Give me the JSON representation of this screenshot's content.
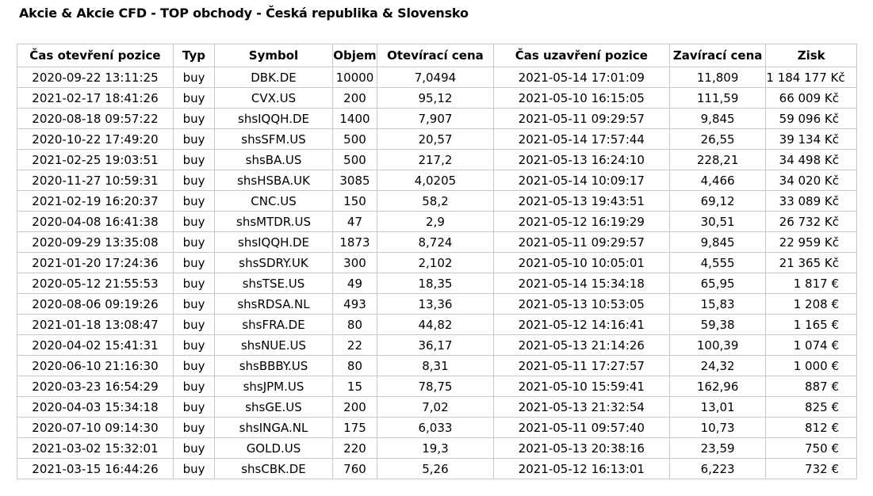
{
  "title": "Akcie & Akcie CFD - TOP obchody - Česká republika & Slovensko",
  "table": {
    "headers": [
      "Čas otevření pozice",
      "Typ",
      "Symbol",
      "Objem",
      "Otevírací cena",
      "Čas uzavření pozice",
      "Zavírací cena",
      "Zisk"
    ],
    "rows": [
      [
        "2020-09-22 13:11:25",
        "buy",
        "DBK.DE",
        "10000",
        "7,0494",
        "2021-05-14 17:01:09",
        "11,809",
        "1 184 177 Kč"
      ],
      [
        "2021-02-17 18:41:26",
        "buy",
        "CVX.US",
        "200",
        "95,12",
        "2021-05-10 16:15:05",
        "111,59",
        "66 009 Kč"
      ],
      [
        "2020-08-18 09:57:22",
        "buy",
        "shsIQQH.DE",
        "1400",
        "7,907",
        "2021-05-11 09:29:57",
        "9,845",
        "59 096 Kč"
      ],
      [
        "2020-10-22 17:49:20",
        "buy",
        "shsSFM.US",
        "500",
        "20,57",
        "2021-05-14 17:57:44",
        "26,55",
        "39 134 Kč"
      ],
      [
        "2021-02-25 19:03:51",
        "buy",
        "shsBA.US",
        "500",
        "217,2",
        "2021-05-13 16:24:10",
        "228,21",
        "34 498 Kč"
      ],
      [
        "2020-11-27 10:59:31",
        "buy",
        "shsHSBA.UK",
        "3085",
        "4,0205",
        "2021-05-14 10:09:17",
        "4,466",
        "34 020 Kč"
      ],
      [
        "2021-02-19 16:20:37",
        "buy",
        "CNC.US",
        "150",
        "58,2",
        "2021-05-13 19:43:51",
        "69,12",
        "33 089 Kč"
      ],
      [
        "2020-04-08 16:41:38",
        "buy",
        "shsMTDR.US",
        "47",
        "2,9",
        "2021-05-12 16:19:29",
        "30,51",
        "26 732 Kč"
      ],
      [
        "2020-09-29 13:35:08",
        "buy",
        "shsIQQH.DE",
        "1873",
        "8,724",
        "2021-05-11 09:29:57",
        "9,845",
        "22 959 Kč"
      ],
      [
        "2021-01-20 17:24:36",
        "buy",
        "shsSDRY.UK",
        "300",
        "2,102",
        "2021-05-10 10:05:01",
        "4,555",
        "21 365 Kč"
      ],
      [
        "2020-05-12 21:55:53",
        "buy",
        "shsTSE.US",
        "49",
        "18,35",
        "2021-05-14 15:34:18",
        "65,95",
        "1 817 €"
      ],
      [
        "2020-08-06 09:19:26",
        "buy",
        "shsRDSA.NL",
        "493",
        "13,36",
        "2021-05-13 10:53:05",
        "15,83",
        "1 208 €"
      ],
      [
        "2021-01-18 13:08:47",
        "buy",
        "shsFRA.DE",
        "80",
        "44,82",
        "2021-05-12 14:16:41",
        "59,38",
        "1 165 €"
      ],
      [
        "2020-04-02 15:41:31",
        "buy",
        "shsNUE.US",
        "22",
        "36,17",
        "2021-05-13 21:14:26",
        "100,39",
        "1 074 €"
      ],
      [
        "2020-06-10 21:16:30",
        "buy",
        "shsBBBY.US",
        "80",
        "8,31",
        "2021-05-11 17:27:57",
        "24,32",
        "1 000 €"
      ],
      [
        "2020-03-23 16:54:29",
        "buy",
        "shsJPM.US",
        "15",
        "78,75",
        "2021-05-10 15:59:41",
        "162,96",
        "887 €"
      ],
      [
        "2020-04-03 15:34:18",
        "buy",
        "shsGE.US",
        "200",
        "7,02",
        "2021-05-13 21:32:54",
        "13,01",
        "825 €"
      ],
      [
        "2020-07-10 09:14:30",
        "buy",
        "shsINGA.NL",
        "175",
        "6,033",
        "2021-05-11 09:57:40",
        "10,73",
        "812 €"
      ],
      [
        "2021-03-02 15:32:01",
        "buy",
        "GOLD.US",
        "220",
        "19,3",
        "2021-05-13 20:38:16",
        "23,59",
        "750 €"
      ],
      [
        "2021-03-15 16:44:26",
        "buy",
        "shsCBK.DE",
        "760",
        "5,26",
        "2021-05-12 16:13:01",
        "6,223",
        "732 €"
      ]
    ]
  }
}
